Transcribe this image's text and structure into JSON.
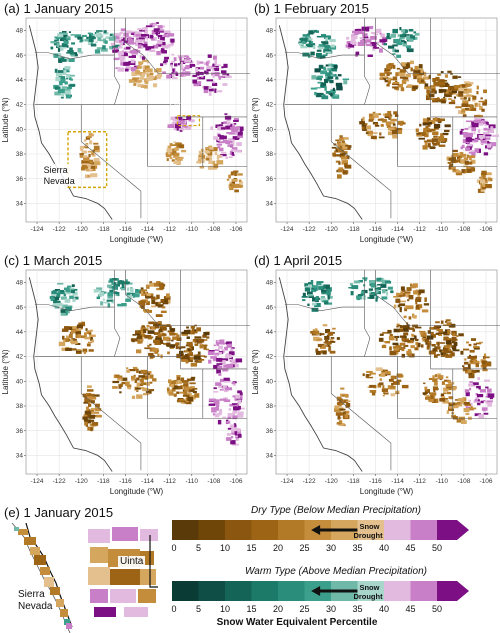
{
  "panels": [
    {
      "id": "a",
      "title": "(a) 1 January 2015"
    },
    {
      "id": "b",
      "title": "(b) 1 February 2015"
    },
    {
      "id": "c",
      "title": "(c) 1 March 2015"
    },
    {
      "id": "d",
      "title": "(d) 1 April 2015"
    }
  ],
  "axes": {
    "xlabel": "Longitude (°W)",
    "ylabel": "Latitude (°N)",
    "xticks": [
      "-124",
      "-122",
      "-120",
      "-118",
      "-116",
      "-114",
      "-112",
      "-110",
      "-108",
      "-106"
    ],
    "yticks": [
      "48",
      "46",
      "44",
      "42",
      "40",
      "38",
      "36",
      "34"
    ]
  },
  "annotations": {
    "uinta": "Uinta",
    "sierra_line1": "Sierra",
    "sierra_line2": "Nevada"
  },
  "inset": {
    "title": "(e) 1 January 2015",
    "sierra_line1": "Sierra",
    "sierra_line2": "Nevada",
    "uinta": "Uinta"
  },
  "colorbars": {
    "dry_title": "Dry Type (Below Median Precipitation)",
    "warm_title": "Warm Type (Above Median Precipitation)",
    "ticks": [
      "0",
      "5",
      "10",
      "15",
      "20",
      "25",
      "30",
      "35",
      "40",
      "45",
      "50"
    ],
    "arrow_line1": "Snow",
    "arrow_line2": "Drought",
    "label": "Snow Water Equivalent Percentile",
    "dry_colors": [
      "#5a3a08",
      "#6f4608",
      "#8a5610",
      "#9c6414",
      "#b27a26",
      "#c48d3c",
      "#d5a65e",
      "#e3c08e",
      "#e2b9df",
      "#c97fc7",
      "#7b0f83"
    ],
    "warm_colors": [
      "#0b3b35",
      "#0f4e46",
      "#146458",
      "#1c7a69",
      "#2a8d7b",
      "#3c9f8c",
      "#70b9a9",
      "#a8d6cb",
      "#e2b9df",
      "#c97fc7",
      "#7b0f83"
    ]
  }
}
